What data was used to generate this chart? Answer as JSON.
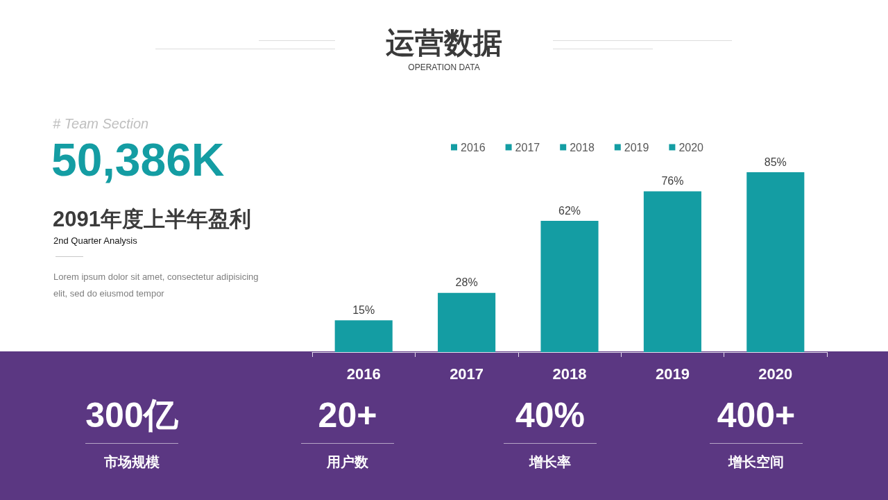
{
  "chart_data": {
    "type": "bar",
    "title": "运营数据",
    "subtitle": "OPERATION DATA",
    "categories": [
      "2016",
      "2017",
      "2018",
      "2019",
      "2020"
    ],
    "series": [
      {
        "name": "2016",
        "color": "#149da3",
        "values": [
          15,
          null,
          null,
          null,
          null
        ],
        "value_labels": [
          "15%",
          null,
          null,
          null,
          null
        ]
      },
      {
        "name": "2017",
        "color": "#149da3",
        "values": [
          null,
          28,
          null,
          null,
          null
        ],
        "value_labels": [
          null,
          "28%",
          null,
          null,
          null
        ]
      },
      {
        "name": "2018",
        "color": "#149da3",
        "values": [
          null,
          null,
          62,
          null,
          null
        ],
        "value_labels": [
          null,
          null,
          "62%",
          null,
          null
        ]
      },
      {
        "name": "2019",
        "color": "#149da3",
        "values": [
          null,
          null,
          null,
          76,
          null
        ],
        "value_labels": [
          null,
          null,
          null,
          "76%",
          null
        ]
      },
      {
        "name": "2020",
        "color": "#149da3",
        "values": [
          null,
          null,
          null,
          null,
          85
        ],
        "value_labels": [
          null,
          null,
          null,
          null,
          "85%"
        ]
      }
    ],
    "legend": "top",
    "annotations": [
      "# Team Section",
      "50,386K",
      "2091年度上半年盈利",
      "2nd Quarter Analysis",
      "Lorem ipsum dolor sit amet, consectetur adipisicing elit, sed do eiusmod tempor",
      "300亿",
      "市场规模",
      "20+",
      "用户数",
      "40%",
      "增长率",
      "400+",
      "增长空间"
    ]
  }
}
